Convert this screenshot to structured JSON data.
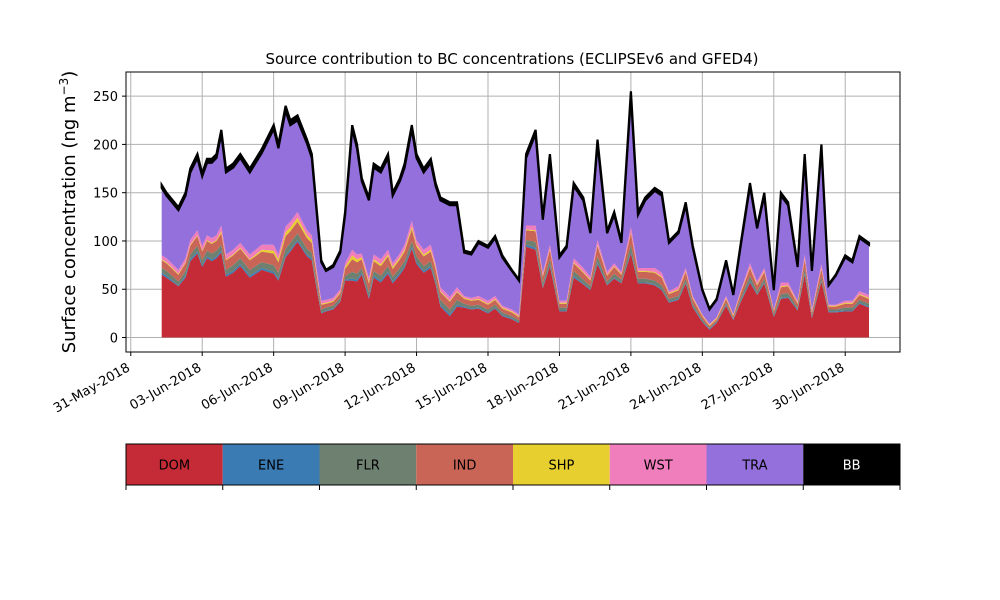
{
  "chart_data": {
    "type": "area",
    "title": "Source contribution to BC concentrations (ECLIPSEv6 and GFED4)",
    "xlabel": "",
    "ylabel": "Surface concentration (ng m",
    "ylabel_unit_exponent": "−3",
    "ylabel_close": ")",
    "xlim": [
      -0.2,
      32.3
    ],
    "ylim": [
      -15,
      275
    ],
    "yticks": [
      0,
      50,
      100,
      150,
      200,
      250
    ],
    "xticks": [
      {
        "day": 0,
        "label": "31-May-2018"
      },
      {
        "day": 3,
        "label": "03-Jun-2018"
      },
      {
        "day": 6,
        "label": "06-Jun-2018"
      },
      {
        "day": 9,
        "label": "09-Jun-2018"
      },
      {
        "day": 12,
        "label": "12-Jun-2018"
      },
      {
        "day": 15,
        "label": "15-Jun-2018"
      },
      {
        "day": 18,
        "label": "18-Jun-2018"
      },
      {
        "day": 21,
        "label": "21-Jun-2018"
      },
      {
        "day": 24,
        "label": "24-Jun-2018"
      },
      {
        "day": 27,
        "label": "27-Jun-2018"
      },
      {
        "day": 30,
        "label": "30-Jun-2018"
      }
    ],
    "grid": true,
    "legend_placement": "below",
    "series": [
      {
        "name": "DOM",
        "color": "#c42b36",
        "label_color": "#000000"
      },
      {
        "name": "ENE",
        "color": "#3a7bb4",
        "label_color": "#000000"
      },
      {
        "name": "FLR",
        "color": "#6e8170",
        "label_color": "#000000"
      },
      {
        "name": "IND",
        "color": "#c86557",
        "label_color": "#000000"
      },
      {
        "name": "SHP",
        "color": "#e6cf2f",
        "label_color": "#000000"
      },
      {
        "name": "WST",
        "color": "#f07ebd",
        "label_color": "#000000"
      },
      {
        "name": "TRA",
        "color": "#9370db",
        "label_color": "#000000"
      },
      {
        "name": "BB",
        "color": "#000000",
        "label_color": "#ffffff"
      }
    ],
    "x": [
      1.3,
      1.5,
      2.0,
      2.3,
      2.5,
      2.8,
      3.0,
      3.2,
      3.4,
      3.6,
      3.8,
      4.0,
      4.3,
      4.6,
      5.0,
      5.5,
      6.0,
      6.2,
      6.5,
      6.7,
      7.0,
      7.4,
      7.6,
      7.8,
      8.0,
      8.2,
      8.5,
      8.8,
      9.0,
      9.3,
      9.5,
      9.7,
      10.0,
      10.2,
      10.5,
      10.8,
      11.0,
      11.3,
      11.5,
      11.8,
      12.0,
      12.3,
      12.6,
      12.8,
      13.0,
      13.4,
      13.7,
      14.0,
      14.3,
      14.6,
      15.0,
      15.3,
      15.6,
      16.0,
      16.3,
      16.6,
      17.0,
      17.3,
      17.6,
      18.0,
      18.3,
      18.6,
      19.0,
      19.3,
      19.6,
      20.0,
      20.3,
      20.6,
      21.0,
      21.3,
      21.6,
      22.0,
      22.3,
      22.6,
      23.0,
      23.3,
      23.6,
      24.0,
      24.3,
      24.6,
      25.0,
      25.3,
      25.6,
      26.0,
      26.3,
      26.6,
      27.0,
      27.3,
      27.6,
      28.0,
      28.3,
      28.6,
      29.0,
      29.3,
      29.6,
      30.0,
      30.3,
      30.6,
      31.0
    ],
    "total": [
      158,
      150,
      135,
      150,
      175,
      190,
      170,
      185,
      185,
      190,
      215,
      175,
      180,
      190,
      175,
      195,
      220,
      200,
      240,
      225,
      230,
      205,
      190,
      135,
      80,
      70,
      75,
      90,
      130,
      220,
      200,
      165,
      145,
      180,
      175,
      190,
      150,
      165,
      180,
      220,
      190,
      175,
      185,
      160,
      145,
      140,
      140,
      90,
      88,
      100,
      95,
      105,
      85,
      70,
      60,
      190,
      215,
      125,
      190,
      85,
      95,
      160,
      145,
      110,
      205,
      110,
      130,
      100,
      255,
      130,
      145,
      155,
      150,
      100,
      110,
      140,
      95,
      50,
      30,
      40,
      80,
      45,
      95,
      160,
      115,
      150,
      50,
      150,
      140,
      75,
      190,
      70,
      200,
      55,
      65,
      85,
      80,
      105,
      98
    ],
    "tra": [
      70,
      65,
      62,
      65,
      70,
      75,
      72,
      75,
      78,
      80,
      95,
      85,
      85,
      88,
      85,
      95,
      120,
      110,
      120,
      100,
      95,
      90,
      80,
      60,
      40,
      30,
      32,
      38,
      50,
      125,
      110,
      75,
      80,
      90,
      90,
      95,
      70,
      75,
      80,
      95,
      85,
      80,
      85,
      80,
      90,
      95,
      85,
      45,
      45,
      55,
      55,
      60,
      50,
      40,
      35,
      70,
      95,
      55,
      90,
      45,
      55,
      75,
      70,
      45,
      100,
      40,
      50,
      30,
      135,
      55,
      70,
      80,
      80,
      50,
      55,
      65,
      50,
      25,
      15,
      18,
      35,
      20,
      45,
      80,
      55,
      75,
      20,
      90,
      80,
      35,
      100,
      40,
      120,
      20,
      30,
      45,
      40,
      55,
      52
    ],
    "ind": [
      8,
      8,
      7,
      8,
      9,
      10,
      9,
      10,
      10,
      10,
      12,
      10,
      10,
      10,
      10,
      11,
      12,
      11,
      13,
      12,
      12,
      11,
      10,
      8,
      5,
      4,
      4,
      5,
      7,
      13,
      12,
      9,
      9,
      10,
      10,
      10,
      8,
      9,
      10,
      12,
      10,
      10,
      10,
      9,
      8,
      8,
      8,
      5,
      5,
      5,
      5,
      5,
      4,
      4,
      3,
      10,
      11,
      7,
      10,
      4,
      4,
      8,
      7,
      6,
      11,
      6,
      7,
      5,
      12,
      7,
      7,
      8,
      8,
      5,
      6,
      7,
      5,
      3,
      2,
      2,
      4,
      2,
      5,
      8,
      6,
      7,
      3,
      7,
      7,
      4,
      9,
      3,
      8,
      3,
      3,
      4,
      4,
      5,
      5
    ],
    "flr": [
      5,
      5,
      4,
      5,
      5,
      6,
      5,
      6,
      6,
      6,
      6,
      5,
      6,
      6,
      6,
      6,
      7,
      6,
      7,
      7,
      7,
      6,
      6,
      5,
      3,
      3,
      3,
      3,
      4,
      7,
      6,
      5,
      5,
      5,
      5,
      6,
      5,
      5,
      5,
      6,
      6,
      5,
      5,
      5,
      5,
      5,
      5,
      3,
      3,
      3,
      3,
      3,
      3,
      2,
      2,
      5,
      6,
      4,
      5,
      3,
      3,
      5,
      4,
      3,
      6,
      3,
      4,
      3,
      7,
      4,
      4,
      4,
      4,
      3,
      3,
      4,
      3,
      2,
      1,
      1,
      2,
      1,
      3,
      5,
      3,
      4,
      2,
      4,
      4,
      2,
      5,
      2,
      4,
      2,
      2,
      3,
      3,
      3,
      3
    ],
    "shp": [
      1,
      1,
      1,
      1,
      1,
      1,
      1,
      1,
      1,
      1,
      2,
      1,
      1,
      1,
      1,
      2,
      3,
      3,
      4,
      4,
      4,
      3,
      3,
      2,
      1,
      1,
      1,
      1,
      2,
      4,
      3,
      2,
      2,
      2,
      2,
      2,
      2,
      2,
      2,
      3,
      2,
      2,
      2,
      2,
      1,
      1,
      1,
      1,
      1,
      1,
      1,
      1,
      1,
      1,
      1,
      1,
      1,
      1,
      1,
      1,
      1,
      1,
      1,
      1,
      1,
      1,
      1,
      1,
      1,
      1,
      1,
      1,
      1,
      1,
      1,
      1,
      1,
      1,
      1,
      1,
      1,
      1,
      1,
      1,
      1,
      1,
      1,
      1,
      1,
      1,
      1,
      1,
      1,
      1,
      1,
      1,
      1,
      1,
      1
    ],
    "wst": [
      4,
      4,
      4,
      4,
      5,
      5,
      5,
      5,
      5,
      5,
      6,
      5,
      5,
      5,
      5,
      5,
      6,
      5,
      6,
      6,
      6,
      5,
      5,
      4,
      3,
      3,
      3,
      3,
      4,
      6,
      5,
      4,
      4,
      5,
      5,
      5,
      4,
      4,
      5,
      6,
      5,
      5,
      5,
      4,
      4,
      4,
      4,
      2,
      2,
      3,
      3,
      3,
      2,
      2,
      2,
      4,
      5,
      3,
      4,
      2,
      2,
      4,
      4,
      3,
      5,
      3,
      3,
      2,
      6,
      3,
      3,
      4,
      4,
      2,
      3,
      3,
      2,
      1,
      1,
      1,
      2,
      1,
      2,
      4,
      3,
      3,
      1,
      4,
      3,
      2,
      4,
      2,
      4,
      1,
      1,
      2,
      2,
      3,
      3
    ]
  },
  "legend": [
    "DOM",
    "ENE",
    "FLR",
    "IND",
    "SHP",
    "WST",
    "TRA",
    "BB"
  ]
}
